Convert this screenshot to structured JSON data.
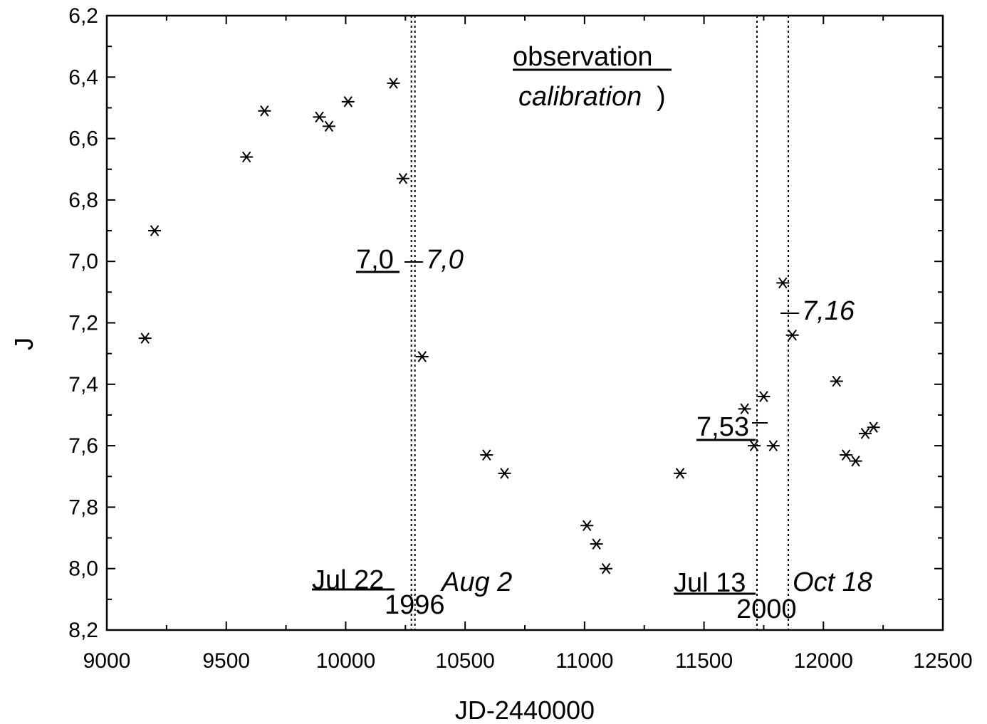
{
  "chart_data": {
    "type": "scatter",
    "xlabel": "JD-2440000",
    "ylabel": "J",
    "xlim": [
      9000,
      12500
    ],
    "ylim": [
      6.2,
      8.2
    ],
    "y_inverted": true,
    "x_ticks": [
      "9000",
      "9500",
      "10000",
      "10500",
      "11000",
      "11500",
      "12000",
      "12500"
    ],
    "y_ticks": [
      "6,2",
      "6,4",
      "6,6",
      "6,8",
      "7,0",
      "7,2",
      "7,4",
      "7,6",
      "7,8",
      "8,0",
      "8,2"
    ],
    "marker": "asterisk",
    "grid": false,
    "points": [
      {
        "x": 9160,
        "y": 7.25
      },
      {
        "x": 9200,
        "y": 6.9
      },
      {
        "x": 9585,
        "y": 6.66
      },
      {
        "x": 9660,
        "y": 6.51
      },
      {
        "x": 9890,
        "y": 6.53
      },
      {
        "x": 9930,
        "y": 6.56
      },
      {
        "x": 10010,
        "y": 6.48
      },
      {
        "x": 10200,
        "y": 6.42
      },
      {
        "x": 10240,
        "y": 6.73
      },
      {
        "x": 10320,
        "y": 7.31
      },
      {
        "x": 10590,
        "y": 7.63
      },
      {
        "x": 10665,
        "y": 7.69
      },
      {
        "x": 11010,
        "y": 7.86
      },
      {
        "x": 11050,
        "y": 7.92
      },
      {
        "x": 11090,
        "y": 8.0
      },
      {
        "x": 11400,
        "y": 7.69
      },
      {
        "x": 11670,
        "y": 7.48
      },
      {
        "x": 11710,
        "y": 7.6
      },
      {
        "x": 11750,
        "y": 7.44
      },
      {
        "x": 11790,
        "y": 7.6
      },
      {
        "x": 11830,
        "y": 7.07
      },
      {
        "x": 11870,
        "y": 7.24
      },
      {
        "x": 12055,
        "y": 7.39
      },
      {
        "x": 12095,
        "y": 7.63
      },
      {
        "x": 12135,
        "y": 7.65
      },
      {
        "x": 12175,
        "y": 7.56
      },
      {
        "x": 12210,
        "y": 7.54
      }
    ],
    "vertical_lines": [
      {
        "x": 10275,
        "style": "dotted"
      },
      {
        "x": 10290,
        "style": "dotted"
      },
      {
        "x": 11722,
        "style": "dotted"
      },
      {
        "x": 11853,
        "style": "dotted"
      }
    ],
    "annotations": {
      "legend_line1": "observation",
      "legend_line2_italic": "calibration",
      "legend_line2_paren": ")",
      "level_left_obs": "7,0",
      "level_left_cal": "7,0",
      "level_right_obs": "7,53",
      "level_right_cal": "7,16",
      "date1_obs": "Jul 22",
      "date1_year": "1996",
      "date1_cal": "Aug 2",
      "date2_obs": "Jul 13",
      "date2_year": "2000",
      "date2_cal": "Oct 18"
    }
  }
}
